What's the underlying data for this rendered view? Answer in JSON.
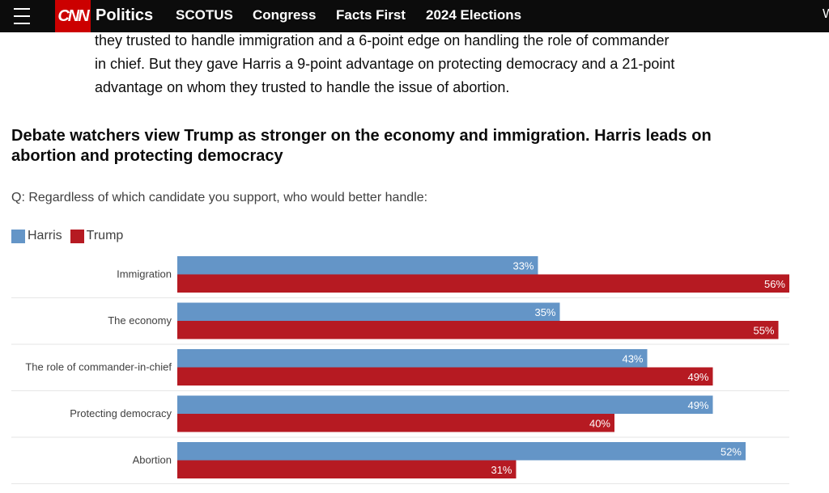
{
  "nav": {
    "logo": "CNN",
    "section": "Politics",
    "items": [
      "SCOTUS",
      "Congress",
      "Facts First",
      "2024 Elections"
    ],
    "edge_label": "W"
  },
  "article": {
    "lines": [
      "they trusted to handle immigration and a 6-point edge on handling the role of commander",
      "in chief. But they gave Harris a 9-point advantage on protecting democracy and a 21-point",
      "advantage on whom they trusted to handle the issue of abortion."
    ]
  },
  "chart_data": {
    "type": "bar",
    "orientation": "horizontal",
    "title": "Debate watchers view Trump as stronger on the economy and immigration. Harris leads on abortion and protecting democracy",
    "subtitle": "Q: Regardless of which candidate you support, who would better handle:",
    "categories": [
      "Immigration",
      "The economy",
      "The role of commander-in-chief",
      "Protecting democracy",
      "Abortion"
    ],
    "series": [
      {
        "name": "Harris",
        "color": "#6495c7",
        "values": [
          33,
          35,
          43,
          49,
          52
        ]
      },
      {
        "name": "Trump",
        "color": "#b61a22",
        "values": [
          56,
          55,
          49,
          40,
          31
        ]
      }
    ],
    "value_suffix": "%",
    "xlim": [
      0,
      56
    ],
    "grid": false,
    "legend": "top-left"
  },
  "colors": {
    "nav_bg": "#0c0c0c",
    "brand_red": "#cc0000",
    "harris": "#6495c7",
    "trump": "#b61a22"
  }
}
